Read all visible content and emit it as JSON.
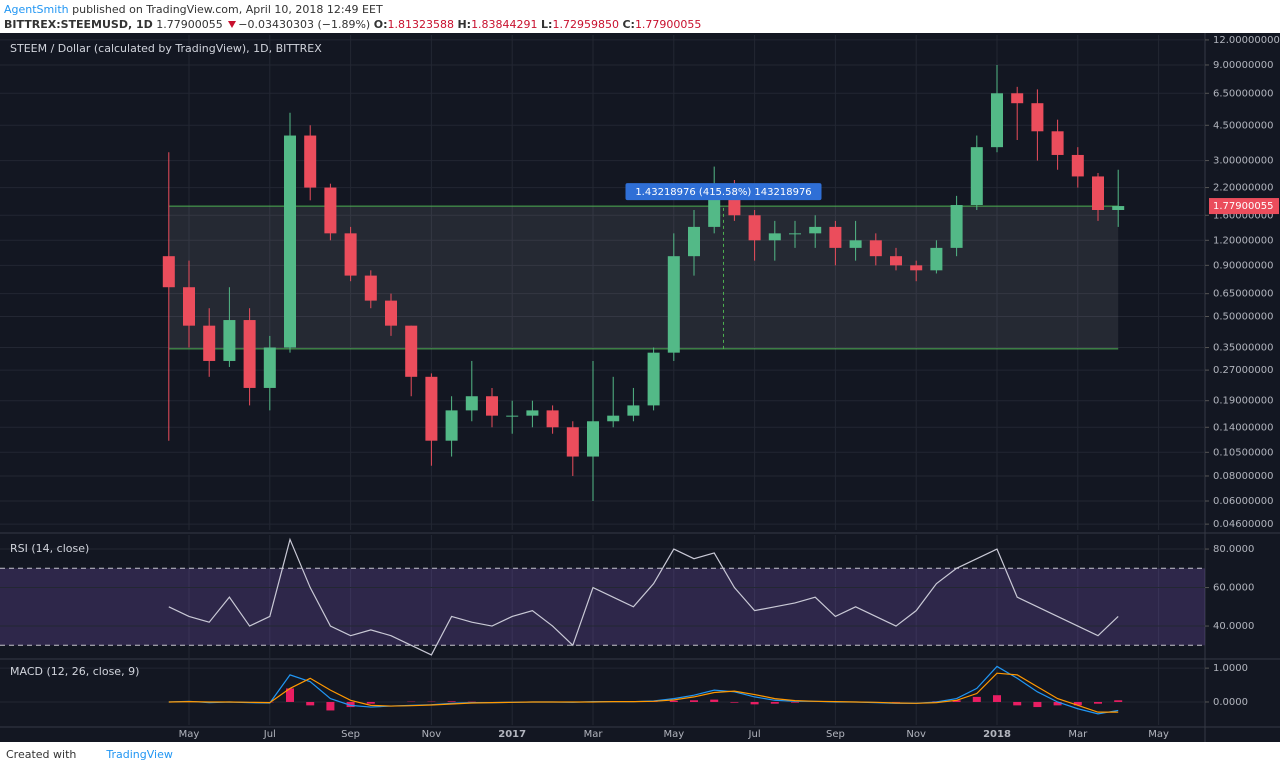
{
  "header": {
    "author": "AgentSmith",
    "published": "published on TradingView.com, April 10, 2018 12:49 EET",
    "symbol": "BITTREX:STEEMUSD, 1D",
    "last": "1.77900055",
    "change": "−0.03430303 (−1.89%)",
    "o_label": "O:",
    "open": "1.81323588",
    "h_label": "H:",
    "high": "1.83844291",
    "l_label": "L:",
    "low": "1.72959850",
    "c_label": "C:",
    "close": "1.77900055"
  },
  "chart_data": [
    {
      "type": "candlestick",
      "title": "STEEM / Dollar (calculated by TradingView), 1D, BITTREX",
      "categories": [
        null,
        "May",
        null,
        null,
        null,
        "Jul",
        null,
        null,
        null,
        "Sep",
        null,
        null,
        null,
        "Nov",
        null,
        null,
        null,
        "2017",
        null,
        null,
        null,
        "Mar",
        null,
        null,
        null,
        "May",
        null,
        null,
        null,
        "Jul",
        null,
        null,
        null,
        "Sep",
        null,
        null,
        null,
        "Nov",
        null,
        null,
        null,
        "2018",
        null,
        null,
        null,
        "Mar",
        null,
        null,
        null,
        "May"
      ],
      "open": [
        1.0,
        0.7,
        0.45,
        0.3,
        0.48,
        0.22,
        0.35,
        4.0,
        2.2,
        1.3,
        0.8,
        0.6,
        0.45,
        0.25,
        0.12,
        0.17,
        0.2,
        0.16,
        0.16,
        0.17,
        0.14,
        0.1,
        0.15,
        0.16,
        0.18,
        0.33,
        1.0,
        1.4,
        2.2,
        1.6,
        1.2,
        1.3,
        1.3,
        1.4,
        1.1,
        1.2,
        1.0,
        0.9,
        0.85,
        1.1,
        1.8,
        3.5,
        6.5,
        5.8,
        4.2,
        3.2,
        2.5,
        1.7,
        null,
        null
      ],
      "high": [
        3.3,
        0.95,
        0.55,
        0.7,
        0.55,
        0.4,
        5.2,
        4.5,
        2.3,
        1.4,
        0.85,
        0.65,
        0.45,
        0.26,
        0.2,
        0.3,
        0.22,
        0.19,
        0.19,
        0.18,
        0.15,
        0.3,
        0.25,
        0.22,
        0.35,
        1.3,
        1.7,
        2.8,
        2.4,
        1.7,
        1.5,
        1.5,
        1.6,
        1.5,
        1.5,
        1.3,
        1.1,
        0.95,
        1.2,
        2.0,
        4.0,
        9.0,
        7.0,
        6.8,
        4.8,
        3.5,
        2.6,
        2.7,
        null,
        null
      ],
      "low": [
        0.12,
        0.35,
        0.25,
        0.28,
        0.18,
        0.17,
        0.33,
        1.9,
        1.2,
        0.75,
        0.55,
        0.4,
        0.2,
        0.09,
        0.1,
        0.15,
        0.14,
        0.13,
        0.14,
        0.13,
        0.08,
        0.06,
        0.14,
        0.15,
        0.17,
        0.3,
        0.8,
        1.3,
        1.5,
        0.95,
        0.95,
        1.1,
        1.1,
        0.9,
        0.95,
        0.9,
        0.85,
        0.75,
        0.82,
        1.0,
        1.7,
        3.3,
        3.8,
        3.0,
        2.7,
        2.2,
        1.5,
        1.4,
        null,
        null
      ],
      "close": [
        0.7,
        0.45,
        0.3,
        0.48,
        0.22,
        0.35,
        4.0,
        2.2,
        1.3,
        0.8,
        0.6,
        0.45,
        0.25,
        0.12,
        0.17,
        0.2,
        0.16,
        0.16,
        0.17,
        0.14,
        0.1,
        0.15,
        0.16,
        0.18,
        0.33,
        1.0,
        1.4,
        2.2,
        1.6,
        1.2,
        1.3,
        1.3,
        1.4,
        1.1,
        1.2,
        1.0,
        0.9,
        0.85,
        1.1,
        1.8,
        3.5,
        6.5,
        5.8,
        4.2,
        3.2,
        2.5,
        1.7,
        1.77900055,
        null,
        null
      ],
      "up_color": "#53b987",
      "down_color": "#eb4d5c",
      "log_scale": true,
      "grid": true,
      "ylim": [
        0.043,
        12.7
      ],
      "yticks": [
        {
          "value": 12,
          "label": "12.00000000"
        },
        {
          "value": 9,
          "label": "9.00000000"
        },
        {
          "value": 6.5,
          "label": "6.50000000"
        },
        {
          "value": 4.5,
          "label": "4.50000000"
        },
        {
          "value": 3,
          "label": "3.00000000"
        },
        {
          "value": 2.2,
          "label": "2.20000000"
        },
        {
          "value": 1.6,
          "label": "1.60000000"
        },
        {
          "value": 1.2,
          "label": "1.20000000"
        },
        {
          "value": 0.9,
          "label": "0.90000000"
        },
        {
          "value": 0.65,
          "label": "0.65000000"
        },
        {
          "value": 0.5,
          "label": "0.50000000"
        },
        {
          "value": 0.35,
          "label": "0.35000000"
        },
        {
          "value": 0.27,
          "label": "0.27000000"
        },
        {
          "value": 0.19,
          "label": "0.19000000"
        },
        {
          "value": 0.14,
          "label": "0.14000000"
        },
        {
          "value": 0.105,
          "label": "0.10500000"
        },
        {
          "value": 0.08,
          "label": "0.08000000"
        },
        {
          "value": 0.06,
          "label": "0.06000000"
        },
        {
          "value": 0.046,
          "label": "0.04600000"
        }
      ],
      "measure": {
        "low": 0.34462,
        "high": 1.77681,
        "label": "1.43218976 (415.58%) 143218976"
      }
    },
    {
      "type": "line",
      "title": "RSI (14, close)",
      "color": "#c9c9d6",
      "values": [
        50,
        45,
        42,
        55,
        40,
        45,
        85,
        60,
        40,
        35,
        38,
        35,
        30,
        25,
        45,
        42,
        40,
        45,
        48,
        40,
        30,
        60,
        55,
        50,
        62,
        80,
        75,
        78,
        60,
        48,
        50,
        52,
        55,
        45,
        50,
        45,
        40,
        48,
        62,
        70,
        75,
        80,
        55,
        50,
        45,
        40,
        35,
        45,
        null,
        null
      ],
      "levels": [
        30,
        70
      ],
      "ylim": [
        23.4,
        87.3
      ],
      "yticks": [
        {
          "value": 40,
          "label": "40.0000"
        },
        {
          "value": 60,
          "label": "60.0000"
        },
        {
          "value": 80,
          "label": "80.0000"
        }
      ]
    },
    {
      "type": "macd",
      "title": "MACD (12, 26, close, 9)",
      "series": [
        {
          "color": "#2196f3",
          "values": [
            0,
            0.02,
            -0.02,
            0,
            -0.02,
            -0.03,
            0.8,
            0.6,
            0.1,
            -0.1,
            -0.15,
            -0.12,
            -0.1,
            -0.08,
            -0.04,
            -0.02,
            -0.02,
            -0.01,
            0,
            0,
            -0.01,
            0.01,
            0.01,
            0.01,
            0.03,
            0.1,
            0.2,
            0.35,
            0.3,
            0.15,
            0.05,
            0.02,
            0.02,
            0,
            0,
            -0.02,
            -0.04,
            -0.04,
            0,
            0.1,
            0.4,
            1.05,
            0.7,
            0.3,
            0,
            -0.2,
            -0.35,
            -0.25,
            null,
            null
          ]
        },
        {
          "color": "#ff9800",
          "values": [
            0,
            0.01,
            0,
            0,
            -0.01,
            -0.02,
            0.4,
            0.7,
            0.35,
            0.05,
            -0.1,
            -0.12,
            -0.11,
            -0.09,
            -0.06,
            -0.03,
            -0.02,
            -0.01,
            0,
            0,
            0,
            0,
            0.01,
            0.01,
            0.02,
            0.06,
            0.15,
            0.28,
            0.32,
            0.22,
            0.1,
            0.04,
            0.02,
            0.01,
            0,
            -0.01,
            -0.03,
            -0.04,
            -0.02,
            0.05,
            0.25,
            0.85,
            0.8,
            0.45,
            0.1,
            -0.1,
            -0.3,
            -0.3,
            null,
            null
          ]
        }
      ],
      "histogram": {
        "color": "#e91e63",
        "values": [
          0,
          0.01,
          -0.02,
          0,
          -0.01,
          -0.01,
          0.4,
          -0.1,
          -0.25,
          -0.15,
          -0.05,
          0,
          0.01,
          0.01,
          0.02,
          0.01,
          0,
          0,
          0,
          0,
          -0.01,
          0.01,
          0,
          0,
          0.01,
          0.04,
          0.05,
          0.07,
          -0.02,
          -0.07,
          -0.05,
          -0.02,
          0,
          -0.01,
          0,
          -0.01,
          -0.01,
          0,
          0.02,
          0.05,
          0.15,
          0.2,
          -0.1,
          -0.15,
          -0.1,
          -0.1,
          -0.05,
          0.05,
          null,
          null
        ]
      },
      "ylim": [
        -0.68,
        1.24
      ],
      "yticks": [
        {
          "value": 0,
          "label": "0.0000"
        },
        {
          "value": 1,
          "label": "1.0000"
        }
      ]
    }
  ],
  "footer": {
    "created": "Created with",
    "brand": "TradingView"
  }
}
